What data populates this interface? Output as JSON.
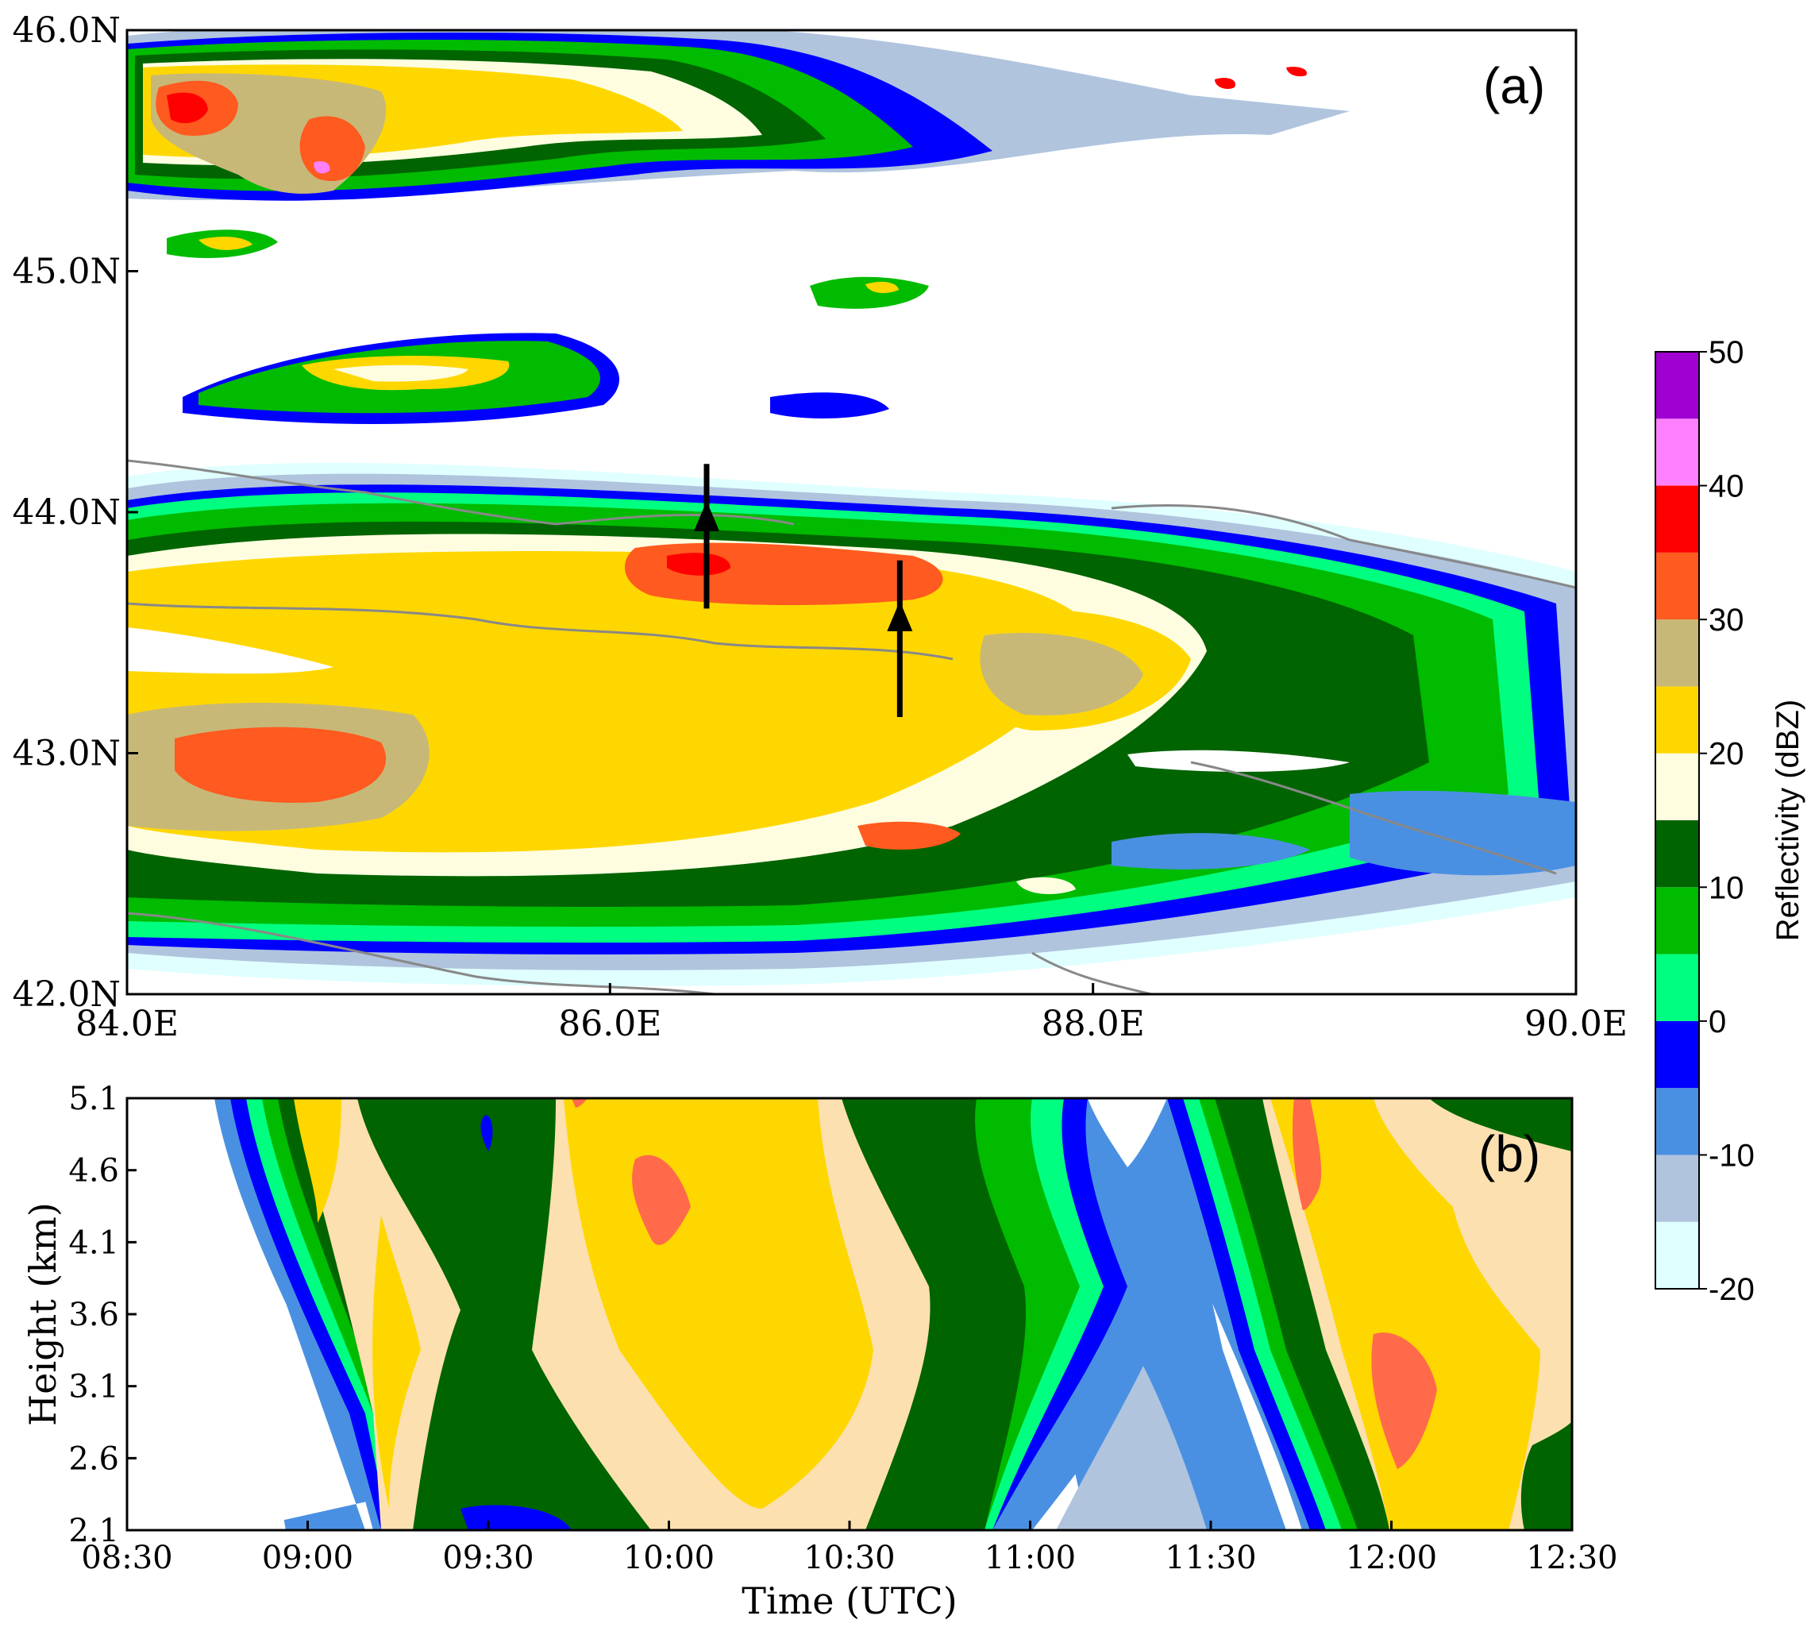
{
  "chart_data": [
    {
      "type": "heatmap",
      "panel_label": "(a)",
      "xlabel": "",
      "ylabel": "",
      "x_ticks": [
        "84.0E",
        "86.0E",
        "88.0E",
        "90.0E"
      ],
      "y_ticks": [
        "42.0N",
        "43.0N",
        "44.0N",
        "45.0N",
        "46.0N"
      ],
      "xlim": [
        84.0,
        90.0
      ],
      "ylim": [
        42.0,
        46.0
      ],
      "grid": false,
      "cells": [
        {
          "lon": 84.6,
          "lat": 45.7,
          "dbz": 35
        },
        {
          "lon": 84.9,
          "lat": 45.5,
          "dbz": 40
        },
        {
          "lon": 85.2,
          "lat": 45.6,
          "dbz": 25
        },
        {
          "lon": 86.0,
          "lat": 45.7,
          "dbz": 20
        },
        {
          "lon": 86.6,
          "lat": 45.6,
          "dbz": 15
        },
        {
          "lon": 85.3,
          "lat": 44.5,
          "dbz": 20
        },
        {
          "lon": 86.6,
          "lat": 43.8,
          "dbz": 35
        },
        {
          "lon": 87.0,
          "lat": 43.7,
          "dbz": 35
        },
        {
          "lon": 87.8,
          "lat": 43.3,
          "dbz": 25
        },
        {
          "lon": 84.6,
          "lat": 42.9,
          "dbz": 35
        },
        {
          "lon": 87.5,
          "lat": 42.8,
          "dbz": 30
        },
        {
          "lon": 89.0,
          "lat": 42.6,
          "dbz": -5
        }
      ],
      "arrows": [
        {
          "lon": 86.4,
          "lat_start": 43.6,
          "lat_end": 44.2
        },
        {
          "lon": 87.2,
          "lat_start": 43.15,
          "lat_end": 43.8
        }
      ]
    },
    {
      "type": "heatmap",
      "panel_label": "(b)",
      "xlabel": "Time (UTC)",
      "ylabel": "Height (km)",
      "x_ticks": [
        "08:30",
        "09:00",
        "09:30",
        "10:00",
        "10:30",
        "11:00",
        "11:30",
        "12:00",
        "12:30"
      ],
      "y_ticks": [
        "2.1",
        "2.6",
        "3.1",
        "3.6",
        "4.1",
        "4.6",
        "5.1"
      ],
      "xlim": [
        "08:30",
        "12:30"
      ],
      "ylim": [
        2.1,
        5.1
      ],
      "grid": false,
      "cells": [
        {
          "time": "09:15",
          "height": 3.6,
          "dbz": 20
        },
        {
          "time": "09:30",
          "height": 3.3,
          "dbz": 10
        },
        {
          "time": "10:00",
          "height": 4.3,
          "dbz": 30
        },
        {
          "time": "10:15",
          "height": 3.4,
          "dbz": 25
        },
        {
          "time": "10:50",
          "height": 3.4,
          "dbz": 10
        },
        {
          "time": "11:15",
          "height": 4.2,
          "dbz": -5
        },
        {
          "time": "11:45",
          "height": 4.5,
          "dbz": 30
        },
        {
          "time": "12:00",
          "height": 3.0,
          "dbz": 30
        },
        {
          "time": "12:25",
          "height": 2.4,
          "dbz": 15
        }
      ]
    }
  ],
  "colorbar": {
    "title": "Reflectivity (dBZ)",
    "tick_labels": [
      "-20",
      "-10",
      "0",
      "10",
      "20",
      "30",
      "40",
      "50"
    ],
    "levels": [
      -20,
      -15,
      -10,
      -5,
      0,
      5,
      10,
      15,
      20,
      25,
      30,
      35,
      40,
      45,
      50
    ],
    "colors": [
      "#e0ffff",
      "#b0c4de",
      "#4a90e2",
      "#0000ff",
      "#00ff80",
      "#00bb00",
      "#006400",
      "#fffde0",
      "#ffd700",
      "#c8b878",
      "#ff5a1f",
      "#ff0000",
      "#ff80ff",
      "#a000d0"
    ]
  }
}
